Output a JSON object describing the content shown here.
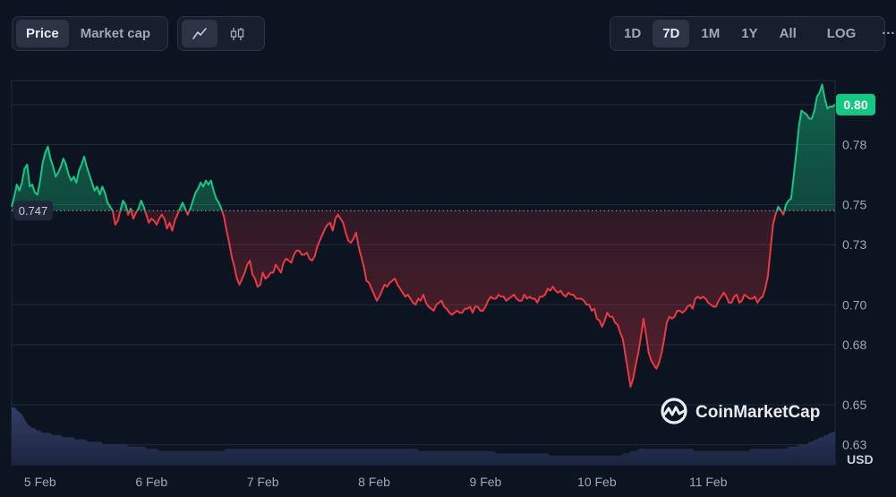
{
  "toolbar": {
    "metric_tabs": [
      {
        "label": "Price",
        "active": true
      },
      {
        "label": "Market cap",
        "active": false
      }
    ],
    "chart_type_icons": [
      {
        "icon": "line-chart-icon",
        "active": true
      },
      {
        "icon": "candlestick-icon",
        "active": false
      }
    ],
    "ranges": [
      {
        "label": "1D",
        "active": false
      },
      {
        "label": "7D",
        "active": true
      },
      {
        "label": "1M",
        "active": false
      },
      {
        "label": "1Y",
        "active": false
      },
      {
        "label": "All",
        "active": false
      }
    ],
    "log_label": "LOG",
    "more_label": "···"
  },
  "brand": {
    "name": "CoinMarketCap",
    "icon": "coinmarketcap-logo-icon"
  },
  "colors": {
    "up": "#16c784",
    "down": "#ea3943",
    "volume": "#2a3654",
    "grid": "#222a3a"
  },
  "chart_data": {
    "type": "line",
    "x_ticks": [
      "5 Feb",
      "6 Feb",
      "7 Feb",
      "8 Feb",
      "9 Feb",
      "10 Feb",
      "11 Feb"
    ],
    "y_ticks": [
      "0.80",
      "0.78",
      "0.75",
      "0.73",
      "0.70",
      "0.68",
      "0.65",
      "0.63"
    ],
    "y_tick_values": [
      0.8,
      0.78,
      0.75,
      0.73,
      0.7,
      0.68,
      0.65,
      0.63
    ],
    "ylim": [
      0.62,
      0.812
    ],
    "unit": "USD",
    "reference_value": 0.747,
    "reference_label": "0.747",
    "current_value": 0.8,
    "current_label": "0.80",
    "day_start_index": [
      11,
      54,
      97,
      140,
      183,
      226,
      269
    ],
    "series": [
      {
        "values": [
          0.749,
          0.754,
          0.76,
          0.757,
          0.761,
          0.768,
          0.77,
          0.759,
          0.76,
          0.756,
          0.755,
          0.762,
          0.771,
          0.776,
          0.779,
          0.773,
          0.769,
          0.764,
          0.766,
          0.769,
          0.773,
          0.77,
          0.765,
          0.762,
          0.764,
          0.761,
          0.767,
          0.77,
          0.774,
          0.769,
          0.765,
          0.761,
          0.757,
          0.759,
          0.755,
          0.759,
          0.756,
          0.751,
          0.749,
          0.747,
          0.74,
          0.742,
          0.747,
          0.752,
          0.75,
          0.745,
          0.748,
          0.743,
          0.746,
          0.748,
          0.752,
          0.749,
          0.745,
          0.741,
          0.743,
          0.742,
          0.74,
          0.743,
          0.745,
          0.743,
          0.738,
          0.741,
          0.737,
          0.742,
          0.745,
          0.748,
          0.751,
          0.748,
          0.745,
          0.748,
          0.752,
          0.756,
          0.758,
          0.761,
          0.759,
          0.762,
          0.76,
          0.762,
          0.757,
          0.753,
          0.751,
          0.748,
          0.744,
          0.737,
          0.731,
          0.724,
          0.719,
          0.713,
          0.71,
          0.713,
          0.716,
          0.72,
          0.722,
          0.715,
          0.713,
          0.709,
          0.71,
          0.716,
          0.713,
          0.714,
          0.716,
          0.716,
          0.72,
          0.718,
          0.716,
          0.721,
          0.723,
          0.722,
          0.721,
          0.725,
          0.727,
          0.727,
          0.725,
          0.725,
          0.726,
          0.723,
          0.722,
          0.724,
          0.729,
          0.732,
          0.735,
          0.738,
          0.74,
          0.741,
          0.737,
          0.743,
          0.745,
          0.743,
          0.741,
          0.736,
          0.732,
          0.731,
          0.733,
          0.736,
          0.729,
          0.724,
          0.719,
          0.712,
          0.711,
          0.708,
          0.705,
          0.702,
          0.704,
          0.707,
          0.71,
          0.709,
          0.711,
          0.712,
          0.713,
          0.71,
          0.708,
          0.706,
          0.704,
          0.705,
          0.703,
          0.701,
          0.7,
          0.703,
          0.702,
          0.705,
          0.701,
          0.699,
          0.698,
          0.697,
          0.7,
          0.701,
          0.702,
          0.699,
          0.698,
          0.696,
          0.695,
          0.696,
          0.697,
          0.696,
          0.696,
          0.698,
          0.698,
          0.699,
          0.696,
          0.699,
          0.699,
          0.697,
          0.697,
          0.699,
          0.702,
          0.704,
          0.703,
          0.703,
          0.705,
          0.704,
          0.704,
          0.702,
          0.703,
          0.704,
          0.705,
          0.703,
          0.702,
          0.702,
          0.705,
          0.703,
          0.704,
          0.703,
          0.703,
          0.701,
          0.704,
          0.704,
          0.705,
          0.708,
          0.707,
          0.709,
          0.707,
          0.706,
          0.707,
          0.705,
          0.704,
          0.706,
          0.705,
          0.705,
          0.703,
          0.703,
          0.703,
          0.702,
          0.7,
          0.7,
          0.697,
          0.698,
          0.693,
          0.692,
          0.689,
          0.692,
          0.696,
          0.694,
          0.694,
          0.691,
          0.69,
          0.686,
          0.683,
          0.675,
          0.667,
          0.659,
          0.663,
          0.67,
          0.676,
          0.684,
          0.693,
          0.685,
          0.676,
          0.672,
          0.67,
          0.668,
          0.671,
          0.676,
          0.683,
          0.691,
          0.694,
          0.693,
          0.694,
          0.697,
          0.697,
          0.696,
          0.697,
          0.699,
          0.7,
          0.698,
          0.703,
          0.704,
          0.703,
          0.704,
          0.703,
          0.701,
          0.7,
          0.699,
          0.699,
          0.702,
          0.704,
          0.706,
          0.704,
          0.701,
          0.701,
          0.704,
          0.705,
          0.701,
          0.702,
          0.705,
          0.704,
          0.703,
          0.703,
          0.704,
          0.701,
          0.703,
          0.704,
          0.708,
          0.714,
          0.727,
          0.74,
          0.745,
          0.749,
          0.747,
          0.745,
          0.75,
          0.752,
          0.753,
          0.764,
          0.776,
          0.789,
          0.797,
          0.796,
          0.795,
          0.793,
          0.793,
          0.797,
          0.804,
          0.806,
          0.81,
          0.803,
          0.798,
          0.799,
          0.799,
          0.8
        ]
      }
    ],
    "volume": [
      0.25,
      0.25,
      0.24,
      0.23,
      0.22,
      0.2,
      0.18,
      0.17,
      0.16,
      0.16,
      0.15,
      0.15,
      0.14,
      0.14,
      0.14,
      0.14,
      0.13,
      0.13,
      0.13,
      0.13,
      0.12,
      0.12,
      0.12,
      0.12,
      0.12,
      0.11,
      0.11,
      0.11,
      0.11,
      0.11,
      0.1,
      0.1,
      0.1,
      0.1,
      0.1,
      0.1,
      0.09,
      0.09,
      0.09,
      0.09,
      0.09,
      0.09,
      0.09,
      0.09,
      0.09,
      0.09,
      0.08,
      0.08,
      0.08,
      0.08,
      0.08,
      0.08,
      0.08,
      0.07,
      0.07,
      0.07,
      0.07,
      0.07,
      0.06,
      0.06,
      0.06,
      0.06,
      0.06,
      0.06,
      0.06,
      0.06,
      0.06,
      0.06,
      0.06,
      0.06,
      0.06,
      0.06,
      0.06,
      0.06,
      0.06,
      0.06,
      0.06,
      0.06,
      0.06,
      0.06,
      0.06,
      0.06,
      0.06,
      0.06,
      0.07,
      0.07,
      0.07,
      0.07,
      0.07,
      0.07,
      0.07,
      0.07,
      0.07,
      0.07,
      0.07,
      0.07,
      0.07,
      0.07,
      0.07,
      0.07,
      0.07,
      0.07,
      0.07,
      0.07,
      0.07,
      0.07,
      0.07,
      0.07,
      0.07,
      0.07,
      0.07,
      0.07,
      0.07,
      0.07,
      0.07,
      0.07,
      0.07,
      0.07,
      0.07,
      0.07,
      0.07,
      0.07,
      0.07,
      0.07,
      0.07,
      0.07,
      0.07,
      0.07,
      0.07,
      0.07,
      0.07,
      0.07,
      0.07,
      0.07,
      0.07,
      0.07,
      0.07,
      0.07,
      0.07,
      0.07,
      0.07,
      0.07,
      0.07,
      0.07,
      0.07,
      0.07,
      0.07,
      0.07,
      0.07,
      0.07,
      0.07,
      0.07,
      0.07,
      0.07,
      0.07,
      0.07,
      0.07,
      0.07,
      0.07,
      0.07,
      0.06,
      0.06,
      0.06,
      0.06,
      0.06,
      0.06,
      0.06,
      0.06,
      0.06,
      0.06,
      0.06,
      0.06,
      0.06,
      0.06,
      0.06,
      0.06,
      0.06,
      0.06,
      0.06,
      0.06,
      0.06,
      0.06,
      0.06,
      0.06,
      0.06,
      0.06,
      0.06,
      0.06,
      0.06,
      0.06,
      0.05,
      0.05,
      0.05,
      0.05,
      0.05,
      0.05,
      0.05,
      0.05,
      0.05,
      0.05,
      0.05,
      0.05,
      0.05,
      0.05,
      0.05,
      0.05,
      0.05,
      0.05,
      0.05,
      0.05,
      0.05,
      0.04,
      0.04,
      0.04,
      0.04,
      0.04,
      0.04,
      0.04,
      0.04,
      0.04,
      0.04,
      0.04,
      0.04,
      0.04,
      0.04,
      0.04,
      0.04,
      0.04,
      0.04,
      0.04,
      0.04,
      0.04,
      0.04,
      0.04,
      0.04,
      0.04,
      0.04,
      0.04,
      0.04,
      0.04,
      0.05,
      0.05,
      0.05,
      0.06,
      0.06,
      0.06,
      0.07,
      0.07,
      0.07,
      0.07,
      0.07,
      0.07,
      0.07,
      0.07,
      0.07,
      0.07,
      0.07,
      0.07,
      0.07,
      0.07,
      0.07,
      0.07,
      0.07,
      0.07,
      0.07,
      0.07,
      0.07,
      0.07,
      0.06,
      0.06,
      0.06,
      0.06,
      0.06,
      0.06,
      0.06,
      0.06,
      0.06,
      0.06,
      0.06,
      0.06,
      0.06,
      0.06,
      0.06,
      0.06,
      0.06,
      0.06,
      0.06,
      0.06,
      0.06,
      0.06,
      0.07,
      0.07,
      0.07,
      0.07,
      0.07,
      0.07,
      0.07,
      0.07,
      0.07,
      0.07,
      0.07,
      0.07,
      0.07,
      0.07,
      0.07,
      0.08,
      0.08,
      0.08,
      0.08,
      0.09,
      0.09,
      0.09,
      0.09,
      0.1,
      0.1,
      0.11,
      0.11,
      0.12,
      0.12,
      0.13,
      0.13,
      0.14,
      0.14,
      0.15
    ]
  }
}
